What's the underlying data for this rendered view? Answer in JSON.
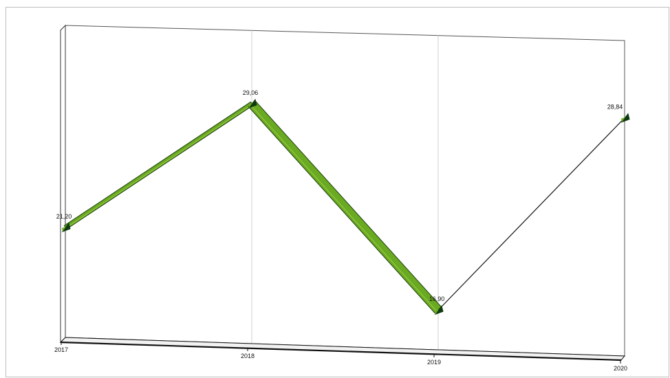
{
  "chart_data": {
    "type": "line",
    "categories": [
      "2017",
      "2018",
      "2019",
      "2020"
    ],
    "values": [
      21.2,
      29.06,
      16.9,
      28.84
    ],
    "value_labels": [
      "21,20",
      "29,06",
      "16,90",
      "28,84"
    ],
    "title": "",
    "xlabel": "",
    "ylabel": "",
    "ylim": [
      14.5,
      33.5
    ],
    "grid": "vertical",
    "legend": "none",
    "style": "3d",
    "colors": {
      "series_face": "#6aaa22",
      "series_top": "#a8d84e",
      "series_edge": "#1b3d0a",
      "marker": "#0f3a0f",
      "gridline": "#cfcfcf",
      "axis": "#111111"
    }
  }
}
